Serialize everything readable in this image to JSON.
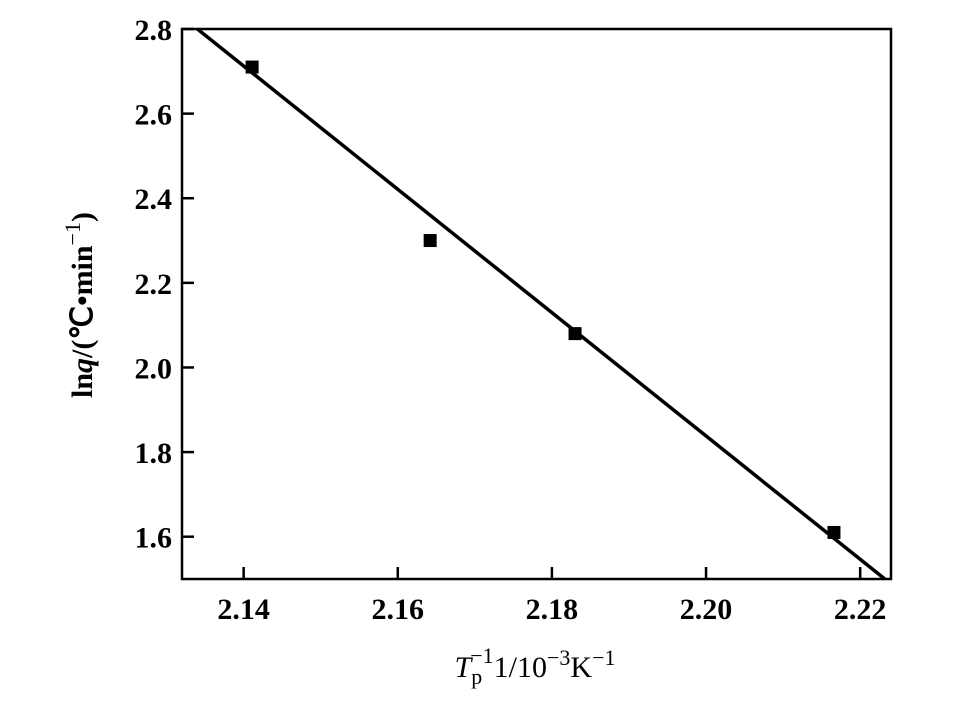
{
  "chart_data": {
    "type": "scatter",
    "title": "",
    "xlabel": {
      "symbol": "T",
      "subscript": "p",
      "rest": "1/10",
      "exp1": "−1",
      "exp2": "−3",
      "unit": "K",
      "exp3": "−1"
    },
    "ylabel": {
      "prefix": "ln",
      "var": "q",
      "rest": "/(℃•min",
      "exp": "−1",
      "close": ")"
    },
    "xlim": [
      2.132,
      2.224
    ],
    "ylim": [
      1.5,
      2.8
    ],
    "x_ticks": [
      "2.14",
      "2.16",
      "2.18",
      "2.20",
      "2.22"
    ],
    "y_ticks": [
      "1.6",
      "1.8",
      "2.0",
      "2.2",
      "2.4",
      "2.6",
      "2.8"
    ],
    "grid": false,
    "series": [
      {
        "marker": "square",
        "points": [
          {
            "x": 2.1411,
            "y": 2.71
          },
          {
            "x": 2.1642,
            "y": 2.3
          },
          {
            "x": 2.183,
            "y": 2.08
          },
          {
            "x": 2.2166,
            "y": 1.61
          }
        ]
      }
    ],
    "fit_line": {
      "x": [
        2.134,
        2.2232
      ],
      "y": [
        2.8,
        1.5
      ]
    }
  }
}
